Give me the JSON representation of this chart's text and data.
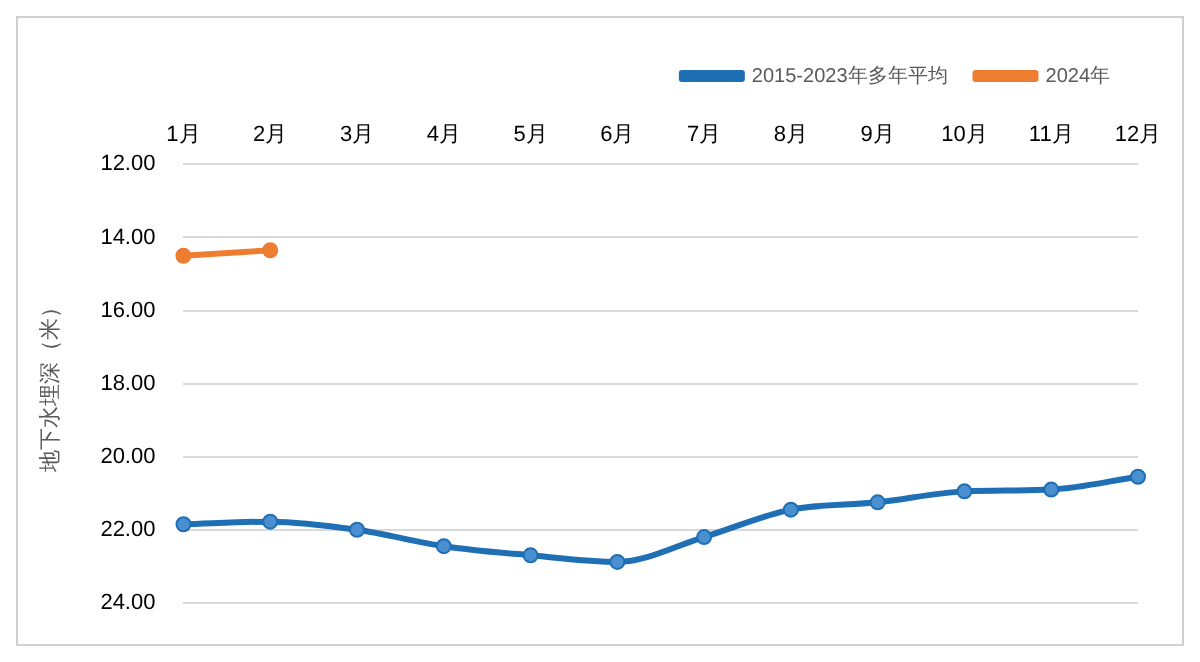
{
  "chart_data": {
    "type": "line",
    "ylabel": "地下水埋深（米）",
    "categories": [
      "1月",
      "2月",
      "3月",
      "4月",
      "5月",
      "6月",
      "7月",
      "8月",
      "9月",
      "10月",
      "11月",
      "12月"
    ],
    "series": [
      {
        "name": "2015-2023年多年平均",
        "color": "#1f6fb5",
        "values": [
          21.85,
          21.78,
          22.0,
          22.45,
          22.7,
          22.88,
          22.2,
          21.45,
          21.25,
          20.95,
          20.9,
          20.55
        ]
      },
      {
        "name": "2024年",
        "color": "#ed7d31",
        "values": [
          14.5,
          14.35,
          null,
          null,
          null,
          null,
          null,
          null,
          null,
          null,
          null,
          null
        ]
      }
    ],
    "ylim": [
      24,
      12
    ],
    "yticks": [
      {
        "value": 12,
        "label": "12.00"
      },
      {
        "value": 14,
        "label": "14.00"
      },
      {
        "value": 16,
        "label": "16.00"
      },
      {
        "value": 18,
        "label": "18.00"
      },
      {
        "value": 20,
        "label": "20.00"
      },
      {
        "value": 22,
        "label": "22.00"
      },
      {
        "value": 24,
        "label": "24.00"
      }
    ],
    "grid": "y",
    "legend": "top right",
    "marker": "circle",
    "line_style": "solid"
  }
}
